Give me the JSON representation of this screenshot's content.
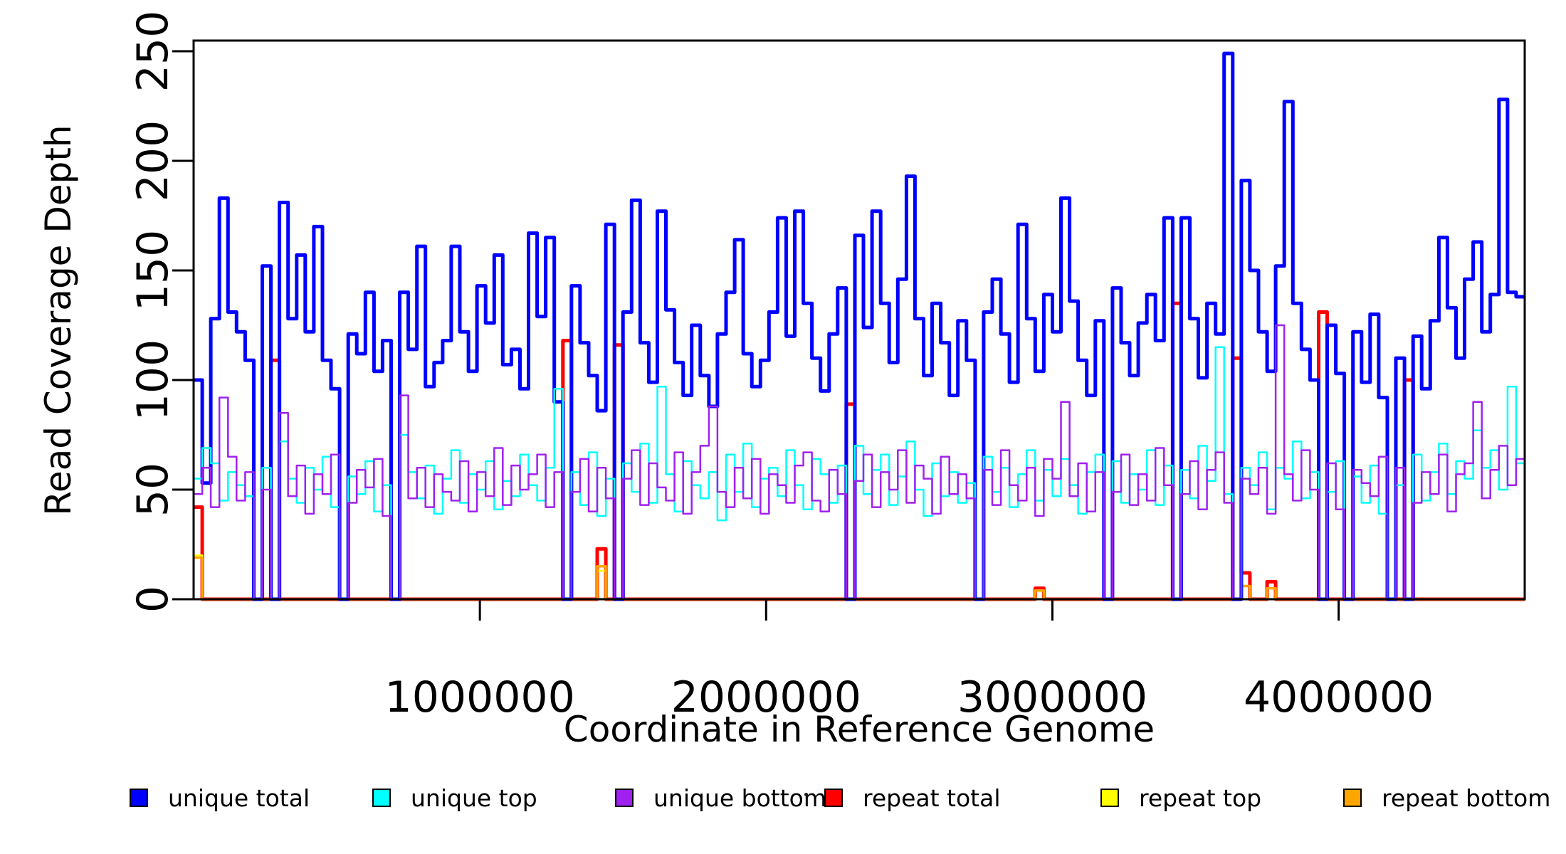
{
  "axes": {
    "y": {
      "label": "Read Coverage Depth",
      "ticks": [
        0,
        50,
        100,
        150,
        200,
        250
      ],
      "range": [
        0,
        250
      ]
    },
    "x": {
      "label": "Coordinate in Reference Genome",
      "ticks": [
        1000000,
        2000000,
        3000000,
        4000000
      ],
      "tick_labels": [
        "1000000",
        "2000000",
        "3000000",
        "4000000"
      ],
      "range": [
        0,
        4650000
      ]
    }
  },
  "legend": {
    "position": "bottom",
    "stray_dot": ".",
    "items": [
      {
        "label": "unique total",
        "color": "#0000FF"
      },
      {
        "label": "unique top",
        "color": "#00FFFF"
      },
      {
        "label": "unique bottom",
        "color": "#A020F0"
      },
      {
        "label": "repeat total",
        "color": "#FF0000"
      },
      {
        "label": "repeat top",
        "color": "#FFFF00"
      },
      {
        "label": "repeat bottom",
        "color": "#FFA500"
      }
    ]
  },
  "chart_data": {
    "type": "line",
    "subtype": "step-coverage",
    "title": "",
    "xlabel": "Coordinate in Reference Genome",
    "ylabel": "Read Coverage Depth",
    "xlim": [
      0,
      4650000
    ],
    "ylim": [
      0,
      250
    ],
    "grid": false,
    "legend_position": "bottom",
    "bin_size": 30000,
    "x_start": 0,
    "series": [
      {
        "name": "unique total",
        "color": "#0000FF",
        "line_width": 5,
        "values": [
          100,
          53,
          128,
          183,
          131,
          122,
          109,
          0,
          152,
          0,
          181,
          128,
          157,
          122,
          170,
          109,
          96,
          0,
          121,
          112,
          140,
          104,
          118,
          0,
          140,
          114,
          161,
          97,
          108,
          118,
          161,
          122,
          104,
          143,
          126,
          157,
          107,
          114,
          96,
          167,
          129,
          165,
          90,
          0,
          143,
          117,
          102,
          86,
          171,
          0,
          131,
          182,
          117,
          99,
          177,
          132,
          108,
          93,
          125,
          102,
          88,
          121,
          140,
          164,
          112,
          97,
          109,
          131,
          174,
          120,
          177,
          135,
          110,
          95,
          121,
          142,
          0,
          166,
          124,
          177,
          135,
          108,
          146,
          193,
          128,
          102,
          135,
          117,
          93,
          127,
          109,
          0,
          131,
          146,
          121,
          99,
          171,
          128,
          104,
          139,
          122,
          183,
          136,
          109,
          93,
          127,
          0,
          142,
          117,
          102,
          126,
          139,
          118,
          174,
          0,
          174,
          128,
          101,
          135,
          121,
          249,
          0,
          191,
          150,
          122,
          104,
          152,
          227,
          135,
          114,
          100,
          0,
          125,
          103,
          0,
          122,
          99,
          130,
          92,
          0,
          110,
          0,
          120,
          96,
          127,
          165,
          133,
          110,
          146,
          163,
          122,
          139,
          228,
          140,
          138
        ]
      },
      {
        "name": "unique top",
        "color": "#00FFFF",
        "line_width": 2.5,
        "values": [
          55,
          69,
          62,
          45,
          58,
          52,
          47,
          0,
          60,
          0,
          72,
          55,
          44,
          60,
          50,
          65,
          42,
          0,
          56,
          48,
          63,
          40,
          52,
          0,
          75,
          58,
          46,
          61,
          39,
          55,
          68,
          44,
          57,
          50,
          63,
          41,
          54,
          47,
          66,
          52,
          45,
          60,
          96,
          0,
          58,
          43,
          67,
          38,
          55,
          0,
          62,
          49,
          71,
          44,
          97,
          57,
          40,
          63,
          52,
          46,
          58,
          36,
          66,
          49,
          71,
          42,
          55,
          60,
          47,
          68,
          52,
          41,
          64,
          57,
          44,
          61,
          0,
          70,
          48,
          59,
          66,
          43,
          56,
          72,
          50,
          38,
          62,
          47,
          58,
          44,
          53,
          0,
          65,
          49,
          60,
          42,
          57,
          68,
          45,
          59,
          47,
          64,
          52,
          39,
          58,
          66,
          0,
          63,
          44,
          57,
          50,
          68,
          43,
          61,
          0,
          59,
          46,
          70,
          54,
          115,
          48,
          0,
          60,
          52,
          67,
          41,
          60,
          55,
          72,
          46,
          58,
          0,
          49,
          63,
          0,
          56,
          44,
          61,
          39,
          0,
          52,
          0,
          66,
          45,
          58,
          71,
          48,
          63,
          55,
          77,
          60,
          68,
          50,
          97,
          62
        ]
      },
      {
        "name": "unique bottom",
        "color": "#A020F0",
        "line_width": 2.5,
        "values": [
          48,
          60,
          42,
          92,
          65,
          45,
          58,
          0,
          50,
          0,
          85,
          47,
          61,
          39,
          57,
          48,
          66,
          0,
          44,
          59,
          51,
          64,
          38,
          0,
          93,
          46,
          60,
          42,
          57,
          49,
          45,
          63,
          40,
          58,
          47,
          69,
          43,
          61,
          50,
          57,
          66,
          42,
          58,
          0,
          49,
          64,
          40,
          60,
          46,
          0,
          55,
          68,
          43,
          62,
          51,
          45,
          67,
          39,
          58,
          70,
          88,
          49,
          42,
          60,
          46,
          64,
          39,
          57,
          52,
          44,
          61,
          67,
          45,
          40,
          59,
          48,
          0,
          54,
          66,
          42,
          58,
          50,
          68,
          44,
          61,
          55,
          39,
          65,
          48,
          57,
          46,
          0,
          59,
          43,
          68,
          52,
          45,
          60,
          38,
          64,
          55,
          90,
          47,
          62,
          40,
          58,
          0,
          49,
          66,
          43,
          57,
          45,
          69,
          52,
          0,
          48,
          63,
          41,
          59,
          67,
          44,
          0,
          55,
          48,
          60,
          39,
          125,
          57,
          45,
          68,
          50,
          0,
          62,
          41,
          0,
          59,
          53,
          47,
          65,
          0,
          60,
          0,
          44,
          58,
          48,
          66,
          40,
          57,
          62,
          90,
          46,
          59,
          70,
          52,
          64
        ]
      },
      {
        "name": "repeat total",
        "color": "#FF0000",
        "line_width": 5,
        "values": [
          42,
          0,
          0,
          0,
          0,
          0,
          0,
          0,
          0,
          109,
          0,
          0,
          0,
          0,
          0,
          0,
          0,
          0,
          0,
          0,
          0,
          0,
          0,
          0,
          0,
          0,
          0,
          0,
          0,
          0,
          0,
          0,
          0,
          0,
          0,
          0,
          0,
          0,
          0,
          0,
          0,
          0,
          0,
          118,
          0,
          0,
          0,
          23,
          0,
          116,
          0,
          0,
          0,
          0,
          0,
          0,
          0,
          0,
          0,
          0,
          0,
          0,
          0,
          0,
          0,
          0,
          0,
          0,
          0,
          0,
          0,
          0,
          0,
          0,
          0,
          0,
          89,
          0,
          0,
          0,
          0,
          0,
          0,
          0,
          0,
          0,
          0,
          0,
          0,
          0,
          0,
          0,
          0,
          0,
          0,
          0,
          0,
          0,
          5,
          0,
          0,
          0,
          0,
          0,
          0,
          0,
          0,
          0,
          0,
          0,
          0,
          0,
          0,
          0,
          135,
          0,
          0,
          0,
          0,
          0,
          0,
          110,
          12,
          0,
          0,
          8,
          0,
          0,
          0,
          0,
          0,
          131,
          0,
          0,
          0,
          0,
          0,
          0,
          0,
          0,
          0,
          100,
          0,
          0,
          0,
          0,
          0,
          0,
          0,
          0,
          0,
          0,
          0,
          0,
          0
        ]
      },
      {
        "name": "repeat top",
        "color": "#FFFF00",
        "line_width": 2.5,
        "values": [
          20,
          0,
          0,
          0,
          0,
          0,
          0,
          0,
          0,
          0,
          0,
          0,
          0,
          0,
          0,
          0,
          0,
          0,
          0,
          0,
          0,
          0,
          0,
          0,
          0,
          0,
          0,
          0,
          0,
          0,
          0,
          0,
          0,
          0,
          0,
          0,
          0,
          0,
          0,
          0,
          0,
          0,
          0,
          0,
          0,
          0,
          0,
          13,
          0,
          0,
          0,
          0,
          0,
          0,
          0,
          0,
          0,
          0,
          0,
          0,
          0,
          0,
          0,
          0,
          0,
          0,
          0,
          0,
          0,
          0,
          0,
          0,
          0,
          0,
          0,
          0,
          0,
          0,
          0,
          0,
          0,
          0,
          0,
          0,
          0,
          0,
          0,
          0,
          0,
          0,
          0,
          0,
          0,
          0,
          0,
          0,
          0,
          0,
          0,
          0,
          0,
          0,
          0,
          0,
          0,
          0,
          0,
          0,
          0,
          0,
          0,
          0,
          0,
          0,
          0,
          0,
          0,
          0,
          0,
          0,
          0,
          0,
          0,
          0,
          0,
          0,
          0,
          0,
          0,
          0,
          0,
          0,
          0,
          0,
          0,
          0,
          0,
          0,
          0,
          0,
          0,
          0,
          0,
          0,
          0,
          0,
          0,
          0,
          0,
          0,
          0,
          0,
          0,
          0,
          0
        ]
      },
      {
        "name": "repeat bottom",
        "color": "#FFA500",
        "line_width": 3.5,
        "values": [
          19,
          0,
          0,
          0,
          0,
          0,
          0,
          0,
          0,
          0,
          0,
          0,
          0,
          0,
          0,
          0,
          0,
          0,
          0,
          0,
          0,
          0,
          0,
          0,
          0,
          0,
          0,
          0,
          0,
          0,
          0,
          0,
          0,
          0,
          0,
          0,
          0,
          0,
          0,
          0,
          0,
          0,
          0,
          0,
          0,
          0,
          0,
          15,
          0,
          0,
          0,
          0,
          0,
          0,
          0,
          0,
          0,
          0,
          0,
          0,
          0,
          0,
          0,
          0,
          0,
          0,
          0,
          0,
          0,
          0,
          0,
          0,
          0,
          0,
          0,
          0,
          0,
          0,
          0,
          0,
          0,
          0,
          0,
          0,
          0,
          0,
          0,
          0,
          0,
          0,
          0,
          0,
          0,
          0,
          0,
          0,
          0,
          0,
          4,
          0,
          0,
          0,
          0,
          0,
          0,
          0,
          0,
          0,
          0,
          0,
          0,
          0,
          0,
          0,
          0,
          0,
          0,
          0,
          0,
          0,
          0,
          0,
          6,
          0,
          0,
          5,
          0,
          0,
          0,
          0,
          0,
          0,
          0,
          0,
          0,
          0,
          0,
          0,
          0,
          0,
          0,
          0,
          0,
          0,
          0,
          0,
          0,
          0,
          0,
          0,
          0,
          0,
          0,
          0,
          0
        ]
      }
    ]
  }
}
